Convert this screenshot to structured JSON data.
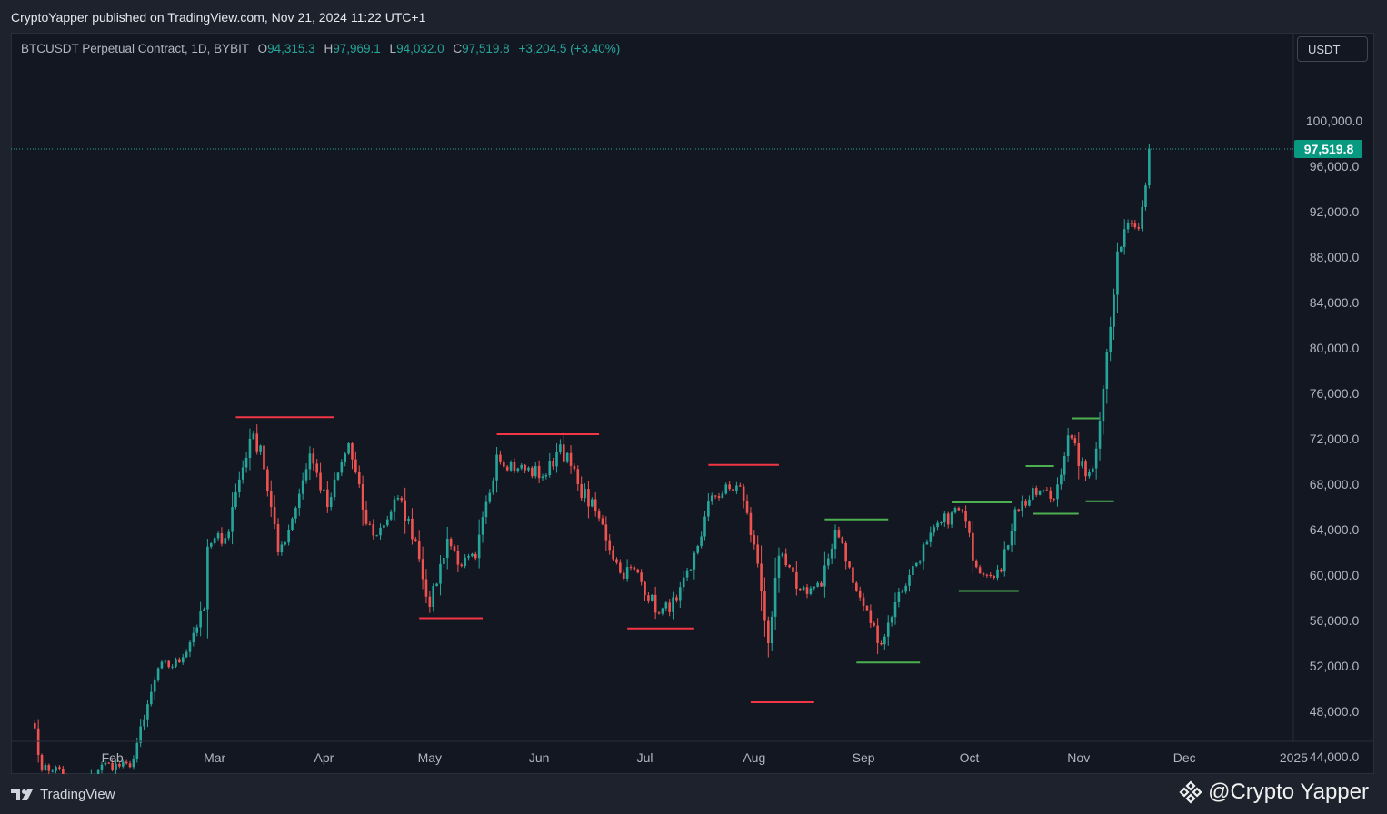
{
  "header": {
    "publish_line": "CryptoYapper published on TradingView.com, Nov 21, 2024 11:22 UTC+1"
  },
  "legend": {
    "symbol": "BTCUSDT Perpetual Contract, 1D, BYBIT",
    "o_label": "O",
    "o_value": "94,315.3",
    "h_label": "H",
    "h_value": "97,969.1",
    "l_label": "L",
    "l_value": "94,032.0",
    "c_label": "C",
    "c_value": "97,519.8",
    "change": "+3,204.5 (+3.40%)"
  },
  "currency_button": "USDT",
  "footer": {
    "brand": "TradingView",
    "watermark": "@Crypto Yapper"
  },
  "colors": {
    "up": "#26a69a",
    "down": "#ef5350",
    "resistance": "#f23645",
    "support": "#4caf50",
    "background": "#131722"
  },
  "chart_data": {
    "type": "candlestick",
    "ylim": [
      41000,
      102500
    ],
    "y_ticks": [
      "100,000.0",
      "96,000.0",
      "92,000.0",
      "88,000.0",
      "84,000.0",
      "80,000.0",
      "76,000.0",
      "72,000.0",
      "68,000.0",
      "64,000.0",
      "60,000.0",
      "56,000.0",
      "52,000.0",
      "48,000.0",
      "44,000.0"
    ],
    "x_ticks": [
      {
        "label": "Feb",
        "date": "2024-02-01"
      },
      {
        "label": "Mar",
        "date": "2024-03-01"
      },
      {
        "label": "Apr",
        "date": "2024-04-01"
      },
      {
        "label": "May",
        "date": "2024-05-01"
      },
      {
        "label": "Jun",
        "date": "2024-06-01"
      },
      {
        "label": "Jul",
        "date": "2024-07-01"
      },
      {
        "label": "Aug",
        "date": "2024-08-01"
      },
      {
        "label": "Sep",
        "date": "2024-09-01"
      },
      {
        "label": "Oct",
        "date": "2024-10-01"
      },
      {
        "label": "Nov",
        "date": "2024-11-01"
      },
      {
        "label": "Dec",
        "date": "2024-12-01"
      },
      {
        "label": "2025",
        "date": "2025-01-01"
      }
    ],
    "last_price": 97519.8,
    "last_price_label": "97,519.8",
    "anchors": [
      [
        "2024-01-10",
        46500
      ],
      [
        "2024-01-12",
        42800
      ],
      [
        "2024-01-16",
        43100
      ],
      [
        "2024-01-22",
        40700
      ],
      [
        "2024-01-29",
        43300
      ],
      [
        "2024-02-06",
        43100
      ],
      [
        "2024-02-10",
        47300
      ],
      [
        "2024-02-14",
        51800
      ],
      [
        "2024-02-20",
        52300
      ],
      [
        "2024-02-27",
        57000
      ],
      [
        "2024-02-28",
        62500
      ],
      [
        "2024-03-05",
        63800
      ],
      [
        "2024-03-06",
        66000
      ],
      [
        "2024-03-11",
        72000
      ],
      [
        "2024-03-14",
        71400
      ],
      [
        "2024-03-19",
        62000
      ],
      [
        "2024-03-22",
        64000
      ],
      [
        "2024-03-28",
        70700
      ],
      [
        "2024-04-02",
        66000
      ],
      [
        "2024-04-08",
        71600
      ],
      [
        "2024-04-13",
        64500
      ],
      [
        "2024-04-16",
        63500
      ],
      [
        "2024-04-22",
        66800
      ],
      [
        "2024-04-27",
        63000
      ],
      [
        "2024-05-01",
        57200
      ],
      [
        "2024-05-06",
        63200
      ],
      [
        "2024-05-10",
        60800
      ],
      [
        "2024-05-14",
        61500
      ],
      [
        "2024-05-20",
        70600
      ],
      [
        "2024-05-26",
        69400
      ],
      [
        "2024-06-03",
        68800
      ],
      [
        "2024-06-07",
        71500
      ],
      [
        "2024-06-12",
        68000
      ],
      [
        "2024-06-18",
        65000
      ],
      [
        "2024-06-24",
        60200
      ],
      [
        "2024-06-28",
        60500
      ],
      [
        "2024-07-05",
        56600
      ],
      [
        "2024-07-10",
        57800
      ],
      [
        "2024-07-14",
        60500
      ],
      [
        "2024-07-20",
        67000
      ],
      [
        "2024-07-28",
        67800
      ],
      [
        "2024-07-29",
        66500
      ],
      [
        "2024-08-02",
        61000
      ],
      [
        "2024-08-05",
        54000
      ],
      [
        "2024-08-08",
        61700
      ],
      [
        "2024-08-14",
        58700
      ],
      [
        "2024-08-20",
        59000
      ],
      [
        "2024-08-24",
        64000
      ],
      [
        "2024-08-26",
        62800
      ],
      [
        "2024-08-29",
        59300
      ],
      [
        "2024-09-06",
        53900
      ],
      [
        "2024-09-10",
        57600
      ],
      [
        "2024-09-14",
        60000
      ],
      [
        "2024-09-19",
        62900
      ],
      [
        "2024-09-26",
        65500
      ],
      [
        "2024-09-29",
        65600
      ],
      [
        "2024-10-03",
        60700
      ],
      [
        "2024-10-10",
        60300
      ],
      [
        "2024-10-14",
        65800
      ],
      [
        "2024-10-21",
        67400
      ],
      [
        "2024-10-25",
        66700
      ],
      [
        "2024-10-29",
        72300
      ],
      [
        "2024-11-03",
        68700
      ],
      [
        "2024-11-05",
        69400
      ],
      [
        "2024-11-08",
        76400
      ],
      [
        "2024-11-12",
        88500
      ],
      [
        "2024-11-15",
        91000
      ],
      [
        "2024-11-18",
        90500
      ],
      [
        "2024-11-19",
        92400
      ],
      [
        "2024-11-20",
        94300
      ],
      [
        "2024-11-21",
        97519.8
      ]
    ],
    "resistance_levels": [
      {
        "start": "2024-03-07",
        "end": "2024-04-04",
        "price": 73900
      },
      {
        "start": "2024-05-20",
        "end": "2024-06-18",
        "price": 72400
      },
      {
        "start": "2024-07-19",
        "end": "2024-08-08",
        "price": 69700
      },
      {
        "start": "2024-04-28",
        "end": "2024-05-16",
        "price": 56200
      },
      {
        "start": "2024-06-26",
        "end": "2024-07-15",
        "price": 55300
      },
      {
        "start": "2024-07-31",
        "end": "2024-08-18",
        "price": 48800
      }
    ],
    "support_levels": [
      {
        "start": "2024-08-21",
        "end": "2024-09-08",
        "price": 64900
      },
      {
        "start": "2024-09-26",
        "end": "2024-10-13",
        "price": 66400
      },
      {
        "start": "2024-10-17",
        "end": "2024-10-25",
        "price": 69600
      },
      {
        "start": "2024-10-30",
        "end": "2024-11-07",
        "price": 73800
      },
      {
        "start": "2024-08-30",
        "end": "2024-09-17",
        "price": 52300
      },
      {
        "start": "2024-09-28",
        "end": "2024-10-15",
        "price": 58600
      },
      {
        "start": "2024-10-19",
        "end": "2024-11-01",
        "price": 65400
      },
      {
        "start": "2024-11-03",
        "end": "2024-11-11",
        "price": 66500
      }
    ]
  }
}
